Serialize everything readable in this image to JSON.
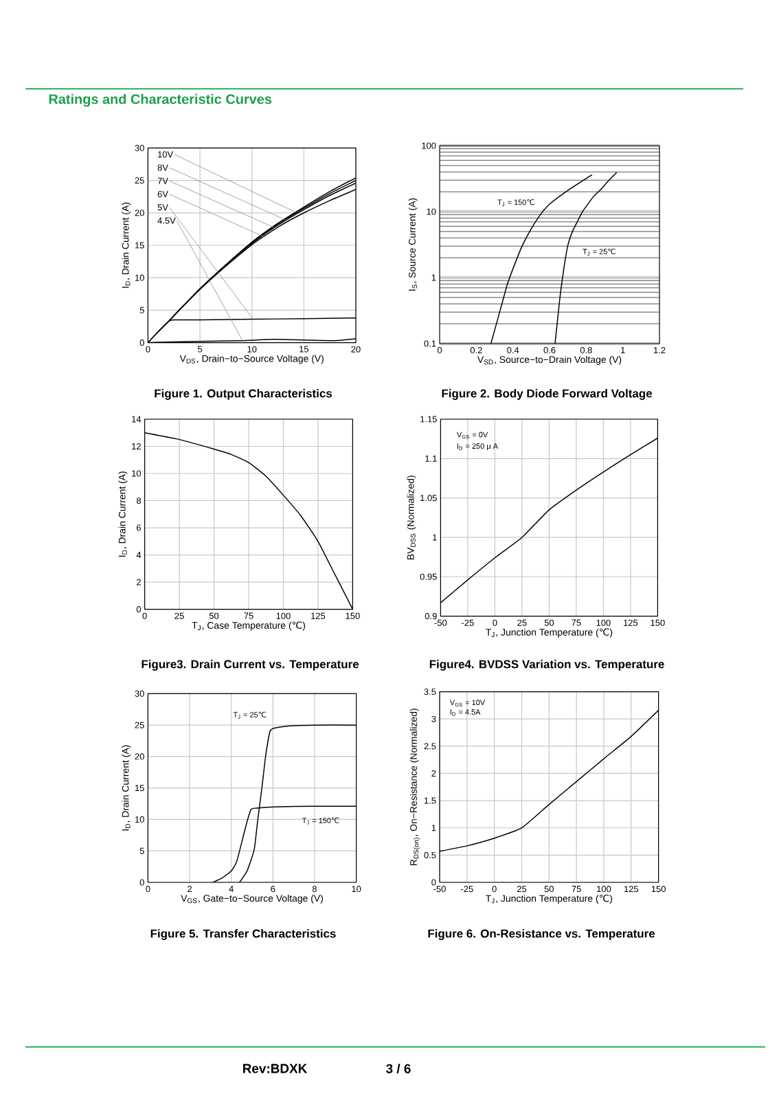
{
  "chart_data": [
    {
      "type": "line",
      "title": "Figure 1. Output Characteristics",
      "xlabel": "V$_{DS}$, Drain−to−Source Voltage (V)",
      "ylabel": "I$_{D}$, Drain Current (A)",
      "xlim": [
        0,
        20
      ],
      "ylim": [
        0,
        30
      ],
      "xticks": [
        0,
        5,
        10,
        15,
        20
      ],
      "yticks": [
        0,
        5,
        10,
        15,
        20,
        25,
        30
      ],
      "grid": true,
      "x": [
        0,
        1,
        2,
        3,
        5,
        7.5,
        10,
        12.5,
        15,
        17.5,
        20
      ],
      "series": [
        {
          "name": "10V",
          "color": "#000000",
          "values": [
            0,
            1.7,
            3.3,
            5.0,
            8.3,
            12.0,
            15.5,
            18.4,
            20.9,
            23.3,
            25.4
          ]
        },
        {
          "name": "8V",
          "color": "#000000",
          "values": [
            null,
            1.7,
            3.3,
            5.0,
            8.3,
            12.0,
            15.4,
            18.3,
            20.7,
            23.0,
            25.0
          ]
        },
        {
          "name": "7V",
          "color": "#000000",
          "values": [
            null,
            null,
            3.3,
            5.0,
            8.3,
            11.9,
            15.3,
            18.1,
            20.5,
            22.7,
            24.6
          ]
        },
        {
          "name": "6V",
          "color": "#000000",
          "values": [
            null,
            null,
            null,
            5.0,
            8.2,
            11.8,
            15.1,
            17.8,
            20.0,
            21.9,
            23.6
          ]
        },
        {
          "name": "5V",
          "color": "#000000",
          "x": [
            0,
            1,
            2,
            2.5,
            5,
            10,
            15,
            20
          ],
          "values": [
            0,
            1.7,
            3.3,
            3.5,
            3.5,
            3.6,
            3.7,
            3.8
          ]
        },
        {
          "name": "4.5V",
          "color": "#000000",
          "x": [
            0,
            2,
            5,
            9,
            12,
            15,
            18,
            20
          ],
          "values": [
            0,
            0.1,
            0.2,
            0.3,
            0.5,
            0.4,
            0.3,
            0.6
          ]
        }
      ],
      "annotations": [
        "Ratings and Characteristic Curves",
        "Rev:BDXK",
        "3 / 6"
      ]
    },
    {
      "type": "line",
      "title": "Figure 2. Body Diode Forward Voltage",
      "xlabel": "V$_{SD}$, Source−to−Drain Voltage (V)",
      "ylabel": "I$_{S}$, Source Current (A)",
      "log": "y",
      "xlim": [
        0,
        1.2
      ],
      "ylim": [
        0.1,
        100
      ],
      "xticks": [
        0,
        0.2,
        0.4,
        0.6,
        0.8,
        1,
        1.2
      ],
      "yticks": [
        0.1,
        1,
        10,
        100
      ],
      "grid": "y",
      "series": [
        {
          "name": "T$_{J}$ = 150℃",
          "color": "#000000",
          "x": [
            0.28,
            0.31,
            0.34,
            0.37,
            0.41,
            0.45,
            0.5,
            0.55,
            0.6,
            0.7,
            0.83
          ],
          "values": [
            0.1,
            0.2,
            0.4,
            0.8,
            1.6,
            3,
            5.5,
            9,
            13,
            21,
            36
          ]
        },
        {
          "name": "T$_{J}$ = 25℃",
          "color": "#000000",
          "x": [
            0.63,
            0.645,
            0.66,
            0.68,
            0.7,
            0.725,
            0.75,
            0.78,
            0.8,
            0.84,
            0.875,
            0.92,
            0.965
          ],
          "values": [
            0.1,
            0.25,
            0.6,
            1.5,
            3.1,
            5,
            6.9,
            10,
            12,
            17,
            21,
            29,
            39
          ]
        }
      ]
    },
    {
      "type": "line",
      "title": "Figure3. Drain Current vs. Temperature",
      "xlabel": "T$_{J}$, Case Temperature (℃)",
      "ylabel": "I$_{D}$, Drain Current (A)",
      "xlim": [
        0,
        150
      ],
      "ylim": [
        0,
        14
      ],
      "xticks": [
        0,
        25,
        50,
        75,
        100,
        125,
        150
      ],
      "yticks": [
        0,
        2,
        4,
        6,
        8,
        10,
        12,
        14
      ],
      "grid": true,
      "color": "#000000",
      "x": [
        0,
        25,
        50,
        62.5,
        75,
        87.5,
        100,
        112.5,
        125,
        137.5,
        150
      ],
      "values": [
        13,
        12.5,
        11.8,
        11.4,
        10.8,
        9.8,
        8.4,
        6.9,
        5.0,
        2.5,
        0
      ]
    },
    {
      "type": "line",
      "title": "Figure4. BVDSS Variation vs. Temperature",
      "xlabel": "T$_{J}$, Junction Temperature (℃)",
      "ylabel": "BV$_{DSS}$ (Normalized)",
      "xlim": [
        -50,
        150
      ],
      "ylim": [
        0.9,
        1.15
      ],
      "xticks": [
        -50,
        -25,
        0,
        25,
        50,
        75,
        100,
        125,
        150
      ],
      "yticks": [
        0.9,
        0.95,
        1,
        1.05,
        1.1,
        1.15
      ],
      "grid": true,
      "color": "#000000",
      "x": [
        -50,
        -25,
        0,
        25,
        50,
        75,
        100,
        125,
        150
      ],
      "values": [
        0.917,
        0.946,
        0.974,
        1.0,
        1.035,
        1.06,
        1.083,
        1.105,
        1.126
      ],
      "annotations": [
        "V$_{GS}$ = 0V",
        "I$_{D}$ = 250 μ A"
      ]
    },
    {
      "type": "line",
      "title": "Figure 5. Transfer Characteristics",
      "xlabel": "V$_{GS}$, Gate−to−Source Voltage (V)",
      "ylabel": "I$_{D}$, Drain Current (A)",
      "xlim": [
        0,
        10
      ],
      "ylim": [
        0,
        30
      ],
      "xticks": [
        0,
        2,
        4,
        6,
        8,
        10
      ],
      "yticks": [
        0,
        5,
        10,
        15,
        20,
        25,
        30
      ],
      "grid": true,
      "series": [
        {
          "name": "T$_{J}$ = 25℃",
          "color": "#000000",
          "x": [
            4.4,
            4.77,
            5.1,
            5.27,
            5.47,
            5.65,
            5.87,
            6.2,
            7,
            8,
            10
          ],
          "values": [
            0,
            1.9,
            5.2,
            9.9,
            15,
            20.1,
            24.1,
            24.6,
            24.9,
            25,
            25
          ]
        },
        {
          "name": "T$_{J}$ = 150℃",
          "color": "#000000",
          "x": [
            3.12,
            3.56,
            4.0,
            4.26,
            4.55,
            4.77,
            4.95,
            5.2,
            6,
            8,
            10
          ],
          "values": [
            0,
            0.7,
            1.8,
            3.3,
            7,
            9.8,
            11.6,
            11.8,
            12,
            12.1,
            12.1
          ]
        }
      ]
    },
    {
      "type": "line",
      "title": "Figure 6. On-Resistance vs. Temperature",
      "xlabel": "T$_{J}$, Junction Temperature (℃)",
      "ylabel": "R$_{DS(on)}$, On−Resistance (Normalized)",
      "xlim": [
        -50,
        150
      ],
      "ylim": [
        0,
        3.5
      ],
      "xticks": [
        -50,
        -25,
        0,
        25,
        50,
        75,
        100,
        125,
        150
      ],
      "yticks": [
        0,
        0.5,
        1,
        1.5,
        2,
        2.5,
        3,
        3.5
      ],
      "grid": true,
      "color": "#000000",
      "x": [
        -50,
        -25,
        0,
        25,
        50,
        75,
        100,
        125,
        150
      ],
      "values": [
        0.57,
        0.67,
        0.81,
        1.0,
        1.43,
        1.85,
        2.27,
        2.68,
        3.16
      ],
      "annotations": [
        "V$_{GS}$ = 10V",
        "I$_{D}$ = 4.5A"
      ]
    }
  ]
}
